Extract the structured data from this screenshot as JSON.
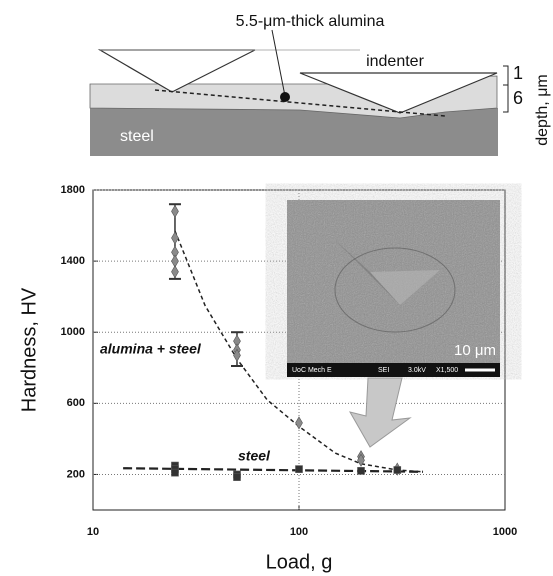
{
  "diagram": {
    "layer_label": "5.5-μm-thick alumina",
    "indenter_label": "indenter",
    "substrate_label": "steel",
    "depth_ticks": [
      "1",
      "6"
    ],
    "depth_label": "depth, μm"
  },
  "inset": {
    "scale_label": "10 μm",
    "info": [
      "UoC Mech E",
      "SEI",
      "3.0kV",
      "X1,500"
    ]
  },
  "chart_data": {
    "type": "scatter",
    "xlabel": "Load, g",
    "ylabel": "Hardness, HV",
    "log_x": true,
    "xlim": [
      10,
      1000
    ],
    "xticks": [
      10,
      100,
      1000
    ],
    "ylim": [
      0,
      1800
    ],
    "yticks": [
      200,
      600,
      1000,
      1400,
      1800
    ],
    "grid": true,
    "annotations": [
      "alumina + steel",
      "steel"
    ],
    "series": [
      {
        "name": "alumina + steel",
        "color": "#8a8a8a",
        "marker": "diamond",
        "x": [
          25,
          25,
          25,
          25,
          25,
          50,
          50,
          50,
          100,
          200,
          200,
          300
        ],
        "values": [
          1680,
          1530,
          1450,
          1400,
          1340,
          950,
          900,
          870,
          490,
          300,
          280,
          230
        ]
      },
      {
        "name": "steel",
        "color": "#333333",
        "marker": "square",
        "x": [
          25,
          25,
          25,
          50,
          50,
          100,
          200,
          300
        ],
        "values": [
          250,
          230,
          210,
          200,
          185,
          230,
          220,
          225
        ]
      }
    ],
    "error_bars": [
      {
        "x": 25,
        "value": 1510,
        "error": 210
      },
      {
        "x": 50,
        "value": 905,
        "error": 95
      }
    ],
    "trends": [
      {
        "x": [
          25,
          35,
          50,
          70,
          100,
          150,
          200,
          300,
          400
        ],
        "values": [
          1570,
          1150,
          850,
          620,
          470,
          320,
          260,
          225,
          215
        ]
      },
      {
        "x": [
          14,
          400
        ],
        "values": [
          235,
          215
        ]
      }
    ]
  }
}
